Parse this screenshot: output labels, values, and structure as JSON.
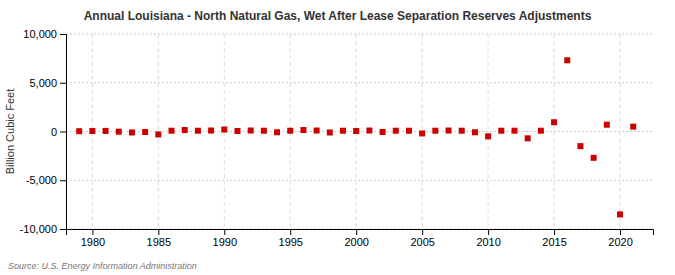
{
  "chart_data": {
    "type": "scatter",
    "title": "Annual Louisiana - North Natural Gas, Wet After Lease Separation Reserves Adjustments",
    "y_label": "Billion Cubic Feet",
    "annotations": [
      "Source: U.S. Energy Information Administration"
    ],
    "x": [
      1979,
      1980,
      1981,
      1982,
      1983,
      1984,
      1985,
      1986,
      1987,
      1988,
      1989,
      1990,
      1991,
      1992,
      1993,
      1994,
      1995,
      1996,
      1997,
      1998,
      1999,
      2000,
      2001,
      2002,
      2003,
      2004,
      2005,
      2006,
      2007,
      2008,
      2009,
      2010,
      2011,
      2012,
      2013,
      2014,
      2015,
      2016,
      2017,
      2018,
      2019,
      2020,
      2021
    ],
    "values": [
      30,
      50,
      60,
      -20,
      -100,
      -50,
      -300,
      80,
      150,
      80,
      100,
      200,
      50,
      100,
      80,
      -80,
      80,
      150,
      100,
      -100,
      80,
      50,
      100,
      -50,
      80,
      80,
      -200,
      80,
      100,
      80,
      -80,
      -500,
      80,
      80,
      -700,
      80,
      950,
      7300,
      -1500,
      -2700,
      700,
      -8500,
      500
    ],
    "color": "#cc0000",
    "marker": "square",
    "xlim": [
      1978,
      2022.5
    ],
    "ylim": [
      -10000,
      10000
    ],
    "xticks": [
      1980,
      1985,
      1990,
      1995,
      2000,
      2005,
      2010,
      2015,
      2020
    ],
    "yticks": [
      {
        "value": -10000,
        "label": "-10,000"
      },
      {
        "value": -5000,
        "label": "-5,000"
      },
      0,
      {
        "value": 5000,
        "label": "5,000"
      },
      {
        "value": 10000,
        "label": "10,000"
      }
    ],
    "grid": true
  }
}
